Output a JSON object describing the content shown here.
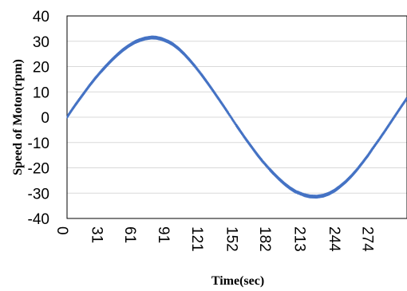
{
  "chart_data": {
    "type": "line",
    "title": "",
    "xlabel": "Time(sec)",
    "ylabel": "Speed of Motor(rpm)",
    "x_ticks": [
      "0",
      "31",
      "61",
      "91",
      "121",
      "152",
      "182",
      "213",
      "244",
      "274"
    ],
    "y_ticks": [
      "40",
      "30",
      "20",
      "10",
      "0",
      "-10",
      "-20",
      "-30",
      "-40"
    ],
    "xlim": [
      0,
      305
    ],
    "ylim": [
      -40,
      40
    ],
    "grid": "horizontal",
    "legend": "none",
    "color": "#4472c4",
    "series": [
      {
        "x": [
          0,
          5,
          10,
          15,
          20,
          25,
          31,
          35,
          40,
          45,
          50,
          55,
          61,
          65,
          70,
          76,
          80,
          85,
          91,
          95,
          100,
          105,
          110,
          115,
          121,
          125,
          130,
          135,
          140,
          145,
          152,
          155,
          160,
          165,
          170,
          175,
          182,
          185,
          190,
          195,
          200,
          205,
          213,
          218,
          224,
          230,
          235,
          240,
          244,
          250,
          255,
          260,
          265,
          270,
          274,
          280,
          285,
          290,
          295,
          300,
          305
        ],
        "y": [
          0,
          3.3,
          6.4,
          9.4,
          12.4,
          15.2,
          18.3,
          20.2,
          22.5,
          24.6,
          26.5,
          28.1,
          29.7,
          30.4,
          31.1,
          31.5,
          31.4,
          30.9,
          29.8,
          28.8,
          27.1,
          25.0,
          22.6,
          20.0,
          16.6,
          14.2,
          11.1,
          7.9,
          4.7,
          1.4,
          -3.3,
          -5.2,
          -8.4,
          -11.4,
          -14.4,
          -17.2,
          -20.7,
          -22.1,
          -24.3,
          -26.3,
          -28.0,
          -29.4,
          -30.8,
          -31.3,
          -31.4,
          -31.0,
          -30.2,
          -29.0,
          -27.7,
          -25.5,
          -23.3,
          -20.8,
          -18.0,
          -15.1,
          -12.5,
          -8.8,
          -5.6,
          -2.3,
          1.0,
          4.3,
          7.5
        ]
      }
    ]
  }
}
